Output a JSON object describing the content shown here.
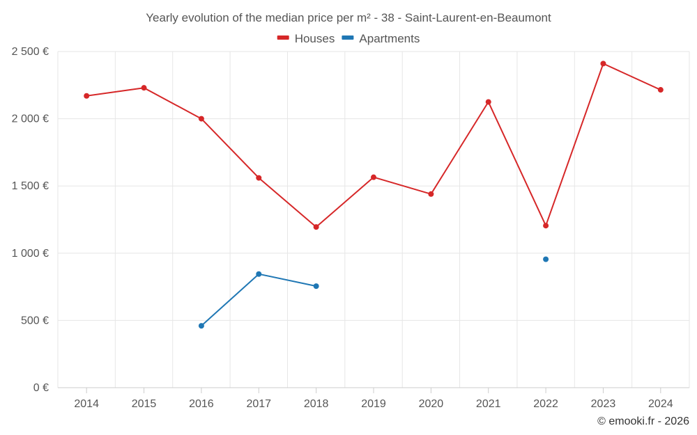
{
  "chart_data": {
    "type": "line",
    "title": "Yearly evolution of the median price per m² - 38 - Saint-Laurent-en-Beaumont",
    "categories": [
      "2014",
      "2015",
      "2016",
      "2017",
      "2018",
      "2019",
      "2020",
      "2021",
      "2022",
      "2023",
      "2024"
    ],
    "series": [
      {
        "name": "Houses",
        "color": "#d62728",
        "values": [
          2170,
          2230,
          2000,
          1560,
          1195,
          1565,
          1440,
          2125,
          1205,
          2410,
          2215
        ]
      },
      {
        "name": "Apartments",
        "color": "#1f77b4",
        "values": [
          null,
          null,
          460,
          845,
          755,
          null,
          null,
          null,
          955,
          null,
          null
        ]
      }
    ],
    "ylim": [
      0,
      2500
    ],
    "yticks": [
      {
        "value": 0,
        "label": "0 €"
      },
      {
        "value": 500,
        "label": "500 €"
      },
      {
        "value": 1000,
        "label": "1 000 €"
      },
      {
        "value": 1500,
        "label": "1 500 €"
      },
      {
        "value": 2000,
        "label": "2 000 €"
      },
      {
        "value": 2500,
        "label": "2 500 €"
      }
    ],
    "xlabel": "",
    "ylabel": "",
    "grid": true,
    "legend_position": "top-center"
  },
  "credit": "© emooki.fr - 2026"
}
